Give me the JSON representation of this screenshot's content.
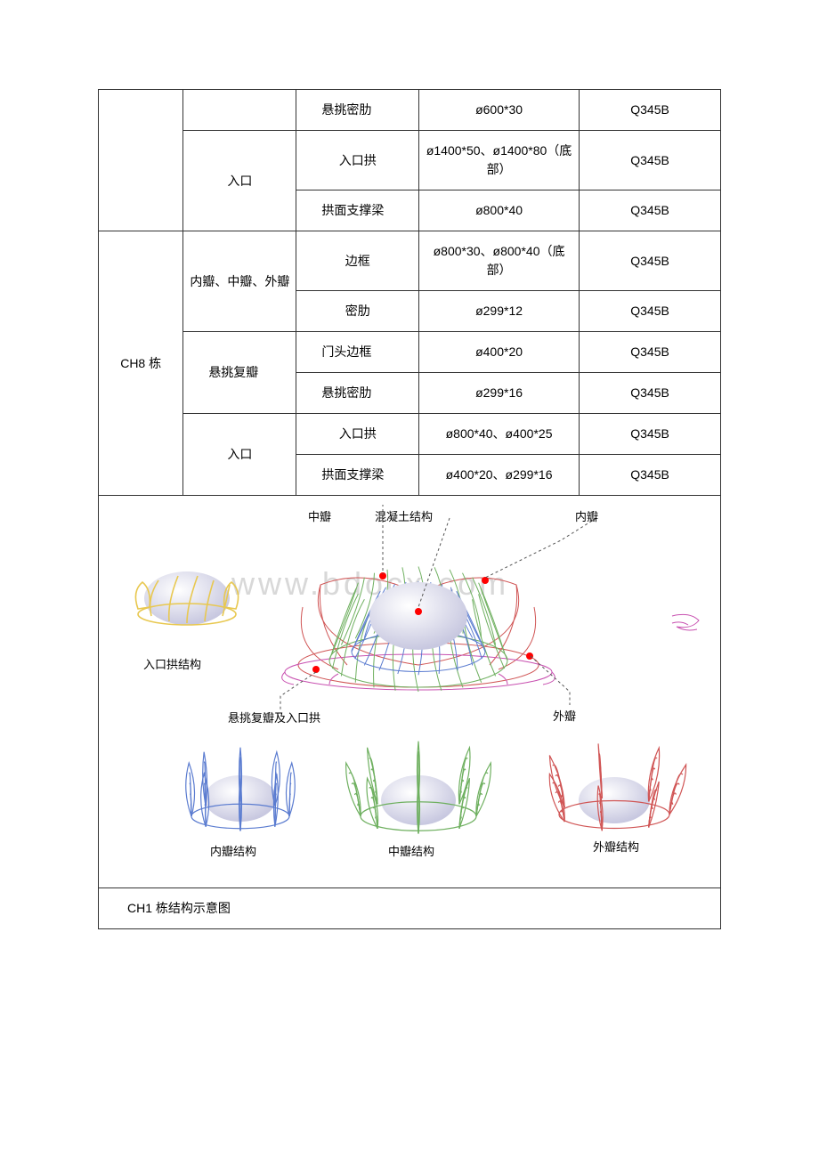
{
  "watermark": "www.bdocx.com",
  "table": {
    "rows": [
      {
        "c3": "悬挑密肋",
        "c4": "ø600*30",
        "c5": "Q345B"
      },
      {
        "c2": "入口",
        "c3": "入口拱",
        "c4": "ø1400*50、ø1400*80（底部）",
        "c5": "Q345B"
      },
      {
        "c3": "拱面支撑梁",
        "c4": "ø800*40",
        "c5": "Q345B"
      },
      {
        "c1": "CH8 栋",
        "c2": "内瓣、中瓣、外瓣",
        "c3": "边框",
        "c4": "ø800*30、ø800*40（底部）",
        "c5": "Q345B"
      },
      {
        "c3": "密肋",
        "c4": "ø299*12",
        "c5": "Q345B"
      },
      {
        "c2": "悬挑复瓣",
        "c3": "门头边框",
        "c4": "ø400*20",
        "c5": "Q345B"
      },
      {
        "c3": "悬挑密肋",
        "c4": "ø299*16",
        "c5": "Q345B"
      },
      {
        "c2": "入口",
        "c3": "入口拱",
        "c4": "ø800*40、ø400*25",
        "c5": "Q345B"
      },
      {
        "c3": "拱面支撑梁",
        "c4": "ø400*20、ø299*16",
        "c5": "Q345B"
      }
    ],
    "caption": "CH1 栋结构示意图"
  },
  "diagram": {
    "labels": {
      "zhongban": "中瓣",
      "concrete": "混凝土结构",
      "neiban": "内瓣",
      "entrance_arch": "入口拱结构",
      "cantilever": "悬挑复瓣及入口拱",
      "waiban": "外瓣",
      "neiban_struct": "内瓣结构",
      "zhongban_struct": "中瓣结构",
      "waiban_struct": "外瓣结构"
    },
    "colors": {
      "yellow": "#e8c850",
      "blue": "#5b7cd0",
      "green": "#6fb060",
      "red": "#d05555",
      "magenta": "#c850b0",
      "sphere_light": "#f5f5ff",
      "sphere_shade": "#c8c8e0",
      "dot": "#ff0000"
    }
  }
}
